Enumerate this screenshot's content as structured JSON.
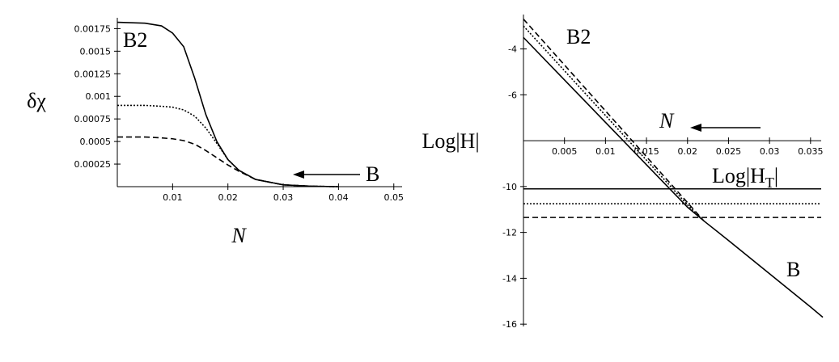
{
  "chart_data": [
    {
      "type": "line",
      "x_label": "N",
      "y_label": "δχ",
      "x": [
        0,
        0.005,
        0.008,
        0.01,
        0.012,
        0.014,
        0.016,
        0.018,
        0.02,
        0.022,
        0.025,
        0.03,
        0.035,
        0.04
      ],
      "series": [
        {
          "color": "#000000",
          "dash": "solid",
          "values": [
            0.00182,
            0.00181,
            0.00178,
            0.0017,
            0.00155,
            0.0012,
            0.0008,
            0.0005,
            0.0003,
            0.00018,
            8e-05,
            2e-05,
            5e-06,
            0
          ]
        },
        {
          "color": "#000000",
          "dash": "dotted",
          "values": [
            0.0009,
            0.0009,
            0.00089,
            0.00088,
            0.00085,
            0.00078,
            0.00065,
            0.00048,
            0.0003,
            0.00018,
            8e-05,
            2e-05,
            5e-06,
            0
          ]
        },
        {
          "color": "#000000",
          "dash": "dashed",
          "values": [
            0.00055,
            0.00055,
            0.00054,
            0.00053,
            0.00051,
            0.00047,
            0.0004,
            0.00032,
            0.00024,
            0.00017,
            8e-05,
            2e-05,
            5e-06,
            0
          ]
        }
      ],
      "xlim": [
        0,
        0.0515
      ],
      "ylim": [
        0,
        0.00187
      ],
      "xticks": [
        0.01,
        0.02,
        0.03,
        0.04,
        0.05
      ],
      "yticks": [
        0.00025,
        0.0005,
        0.00075,
        0.001,
        0.00125,
        0.0015,
        0.00175
      ],
      "annotations": [
        {
          "parts": [
            "B2"
          ]
        },
        {
          "parts": [
            "B"
          ]
        }
      ]
    },
    {
      "type": "line",
      "y_label": "Log|H|",
      "x": [
        0,
        0.005,
        0.01,
        0.015,
        0.02,
        0.022,
        0.025,
        0.03,
        0.035,
        0.0365
      ],
      "series": [
        {
          "color": "#000000",
          "dash": "solid",
          "values": [
            -3.5,
            -5.35,
            -7.2,
            -9.05,
            -10.9,
            -11.5,
            -12.35,
            -13.8,
            -15.25,
            -15.7
          ]
        },
        {
          "color": "#000000",
          "dash": "dotted",
          "values": [
            -3.0,
            -4.95,
            -6.9,
            -8.85,
            -10.8,
            -11.5,
            null,
            null,
            null,
            null
          ]
        },
        {
          "color": "#000000",
          "dash": "dashed",
          "values": [
            -2.7,
            -4.7,
            -6.7,
            -8.7,
            -10.7,
            -11.5,
            null,
            null,
            null,
            null
          ]
        }
      ],
      "hlines": [
        {
          "value": -10.1,
          "dash": "solid"
        },
        {
          "value": -10.75,
          "dash": "dotted"
        },
        {
          "value": -11.35,
          "dash": "dashed"
        }
      ],
      "xaxis_at": -8,
      "xlim": [
        0,
        0.0363
      ],
      "ylim": [
        -16.1,
        -2.5
      ],
      "xticks": [
        0.005,
        0.01,
        0.015,
        0.02,
        0.025,
        0.03,
        0.035
      ],
      "yticks": [
        -4,
        -6,
        -10,
        -12,
        -14,
        -16
      ],
      "annotations": [
        {
          "parts": [
            "B2"
          ]
        },
        {
          "parts": [
            "B"
          ]
        },
        {
          "parts": [
            "N"
          ]
        },
        {
          "parts": [
            "Log|H",
            "T",
            "|"
          ]
        }
      ]
    }
  ]
}
